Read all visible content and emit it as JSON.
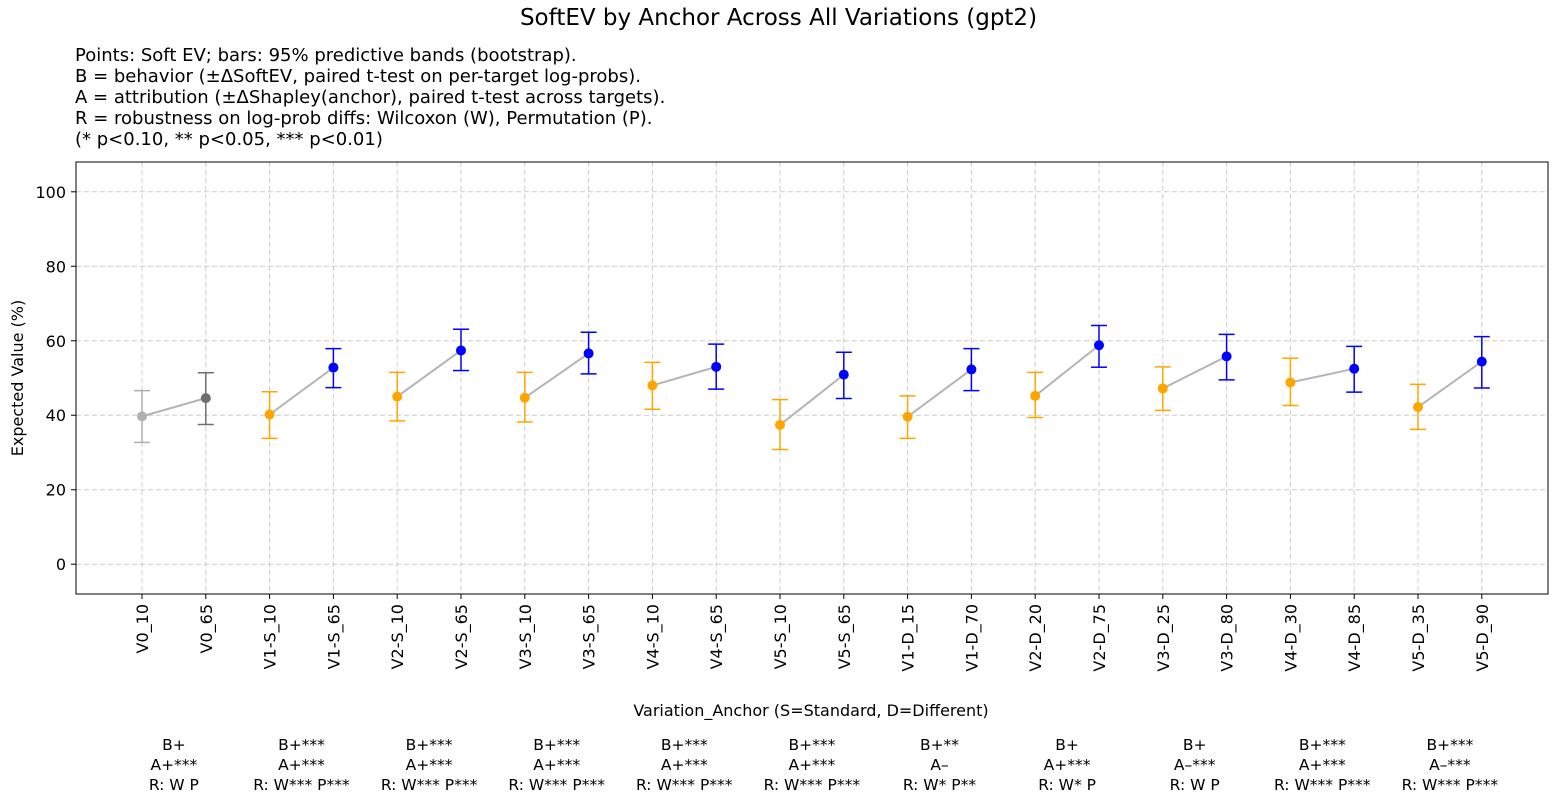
{
  "chart_data": {
    "type": "scatter",
    "title": "SoftEV by Anchor Across All Variations (gpt2)",
    "subtitle_lines": [
      "Points: Soft EV; bars: 95% predictive bands (bootstrap).",
      "B = behavior (±ΔSoftEV, paired t-test on per-target log-probs).",
      "A = attribution (±ΔShapley(anchor), paired t-test across targets).",
      "R = robustness on log-prob diffs: Wilcoxon (W), Permutation (P).",
      "(* p<0.10, ** p<0.05, *** p<0.01)"
    ],
    "xlabel": "Variation_Anchor (S=Standard, D=Different)",
    "ylabel": "Expected Value (%)",
    "ylim": [
      -8,
      108
    ],
    "yticks": [
      0,
      20,
      40,
      60,
      80,
      100
    ],
    "grid": true,
    "categories": [
      "V0_10",
      "V0_65",
      "V1-S_10",
      "V1-S_65",
      "V2-S_10",
      "V2-S_65",
      "V3-S_10",
      "V3-S_65",
      "V4-S_10",
      "V4-S_65",
      "V5-S_10",
      "V5-S_65",
      "V1-D_15",
      "V1-D_70",
      "V2-D_20",
      "V2-D_75",
      "V3-D_25",
      "V3-D_80",
      "V4-D_30",
      "V4-D_85",
      "V5-D_35",
      "V5-D_90"
    ],
    "values": [
      39.7,
      44.6,
      40.2,
      52.8,
      45.0,
      57.4,
      44.7,
      56.6,
      48.0,
      53.0,
      37.4,
      50.9,
      39.6,
      52.3,
      45.2,
      58.8,
      47.2,
      55.8,
      48.8,
      52.5,
      42.2,
      54.4
    ],
    "lower": [
      32.7,
      37.5,
      33.8,
      47.4,
      38.5,
      52.0,
      38.2,
      51.1,
      41.6,
      47.0,
      30.8,
      44.5,
      33.8,
      46.6,
      39.4,
      52.9,
      41.3,
      49.5,
      42.6,
      46.2,
      36.2,
      47.3
    ],
    "upper": [
      46.6,
      51.4,
      46.3,
      57.9,
      51.5,
      63.1,
      51.5,
      62.3,
      54.2,
      59.1,
      44.2,
      56.9,
      45.2,
      57.9,
      51.5,
      64.1,
      53.0,
      61.7,
      55.3,
      58.5,
      48.3,
      61.1
    ],
    "point_colors": [
      "#b0b0b0",
      "#6e6e6e",
      "#ffa500",
      "#0000ff",
      "#ffa500",
      "#0000ff",
      "#ffa500",
      "#0000ff",
      "#ffa500",
      "#0000ff",
      "#ffa500",
      "#0000ff",
      "#ffa500",
      "#0000ff",
      "#ffa500",
      "#0000ff",
      "#ffa500",
      "#0000ff",
      "#ffa500",
      "#0000ff",
      "#ffa500",
      "#0000ff"
    ],
    "connector_color": "#b4b4b4",
    "annotations": [
      {
        "b": "B+",
        "a": "A+***",
        "r": "R: W P"
      },
      {
        "b": "B+***",
        "a": "A+***",
        "r": "R: W*** P***"
      },
      {
        "b": "B+***",
        "a": "A+***",
        "r": "R: W*** P***"
      },
      {
        "b": "B+***",
        "a": "A+***",
        "r": "R: W*** P***"
      },
      {
        "b": "B+***",
        "a": "A+***",
        "r": "R: W*** P***"
      },
      {
        "b": "B+***",
        "a": "A+***",
        "r": "R: W*** P***"
      },
      {
        "b": "B+**",
        "a": "A–",
        "r": "R: W* P**"
      },
      {
        "b": "B+",
        "a": "A+***",
        "r": "R: W* P"
      },
      {
        "b": "B+",
        "a": "A–***",
        "r": "R: W P"
      },
      {
        "b": "B+***",
        "a": "A+***",
        "r": "R: W*** P***"
      },
      {
        "b": "B+***",
        "a": "A–***",
        "r": "R: W*** P***"
      }
    ]
  }
}
